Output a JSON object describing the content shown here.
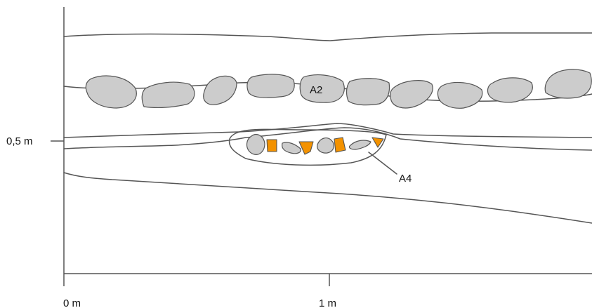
{
  "section_drawing": {
    "scale": {
      "vertical_label": "0,5 m",
      "horizontal_labels": [
        "0 m",
        "1 m"
      ]
    },
    "features": [
      {
        "id": "A2",
        "label": "A2",
        "description": "row of stones"
      },
      {
        "id": "A4",
        "label": "A4",
        "description": "pit with stones"
      }
    ],
    "colors": {
      "stone_fill": "#cccccc",
      "highlight_fill": "#f39200",
      "line": "#555555"
    }
  }
}
